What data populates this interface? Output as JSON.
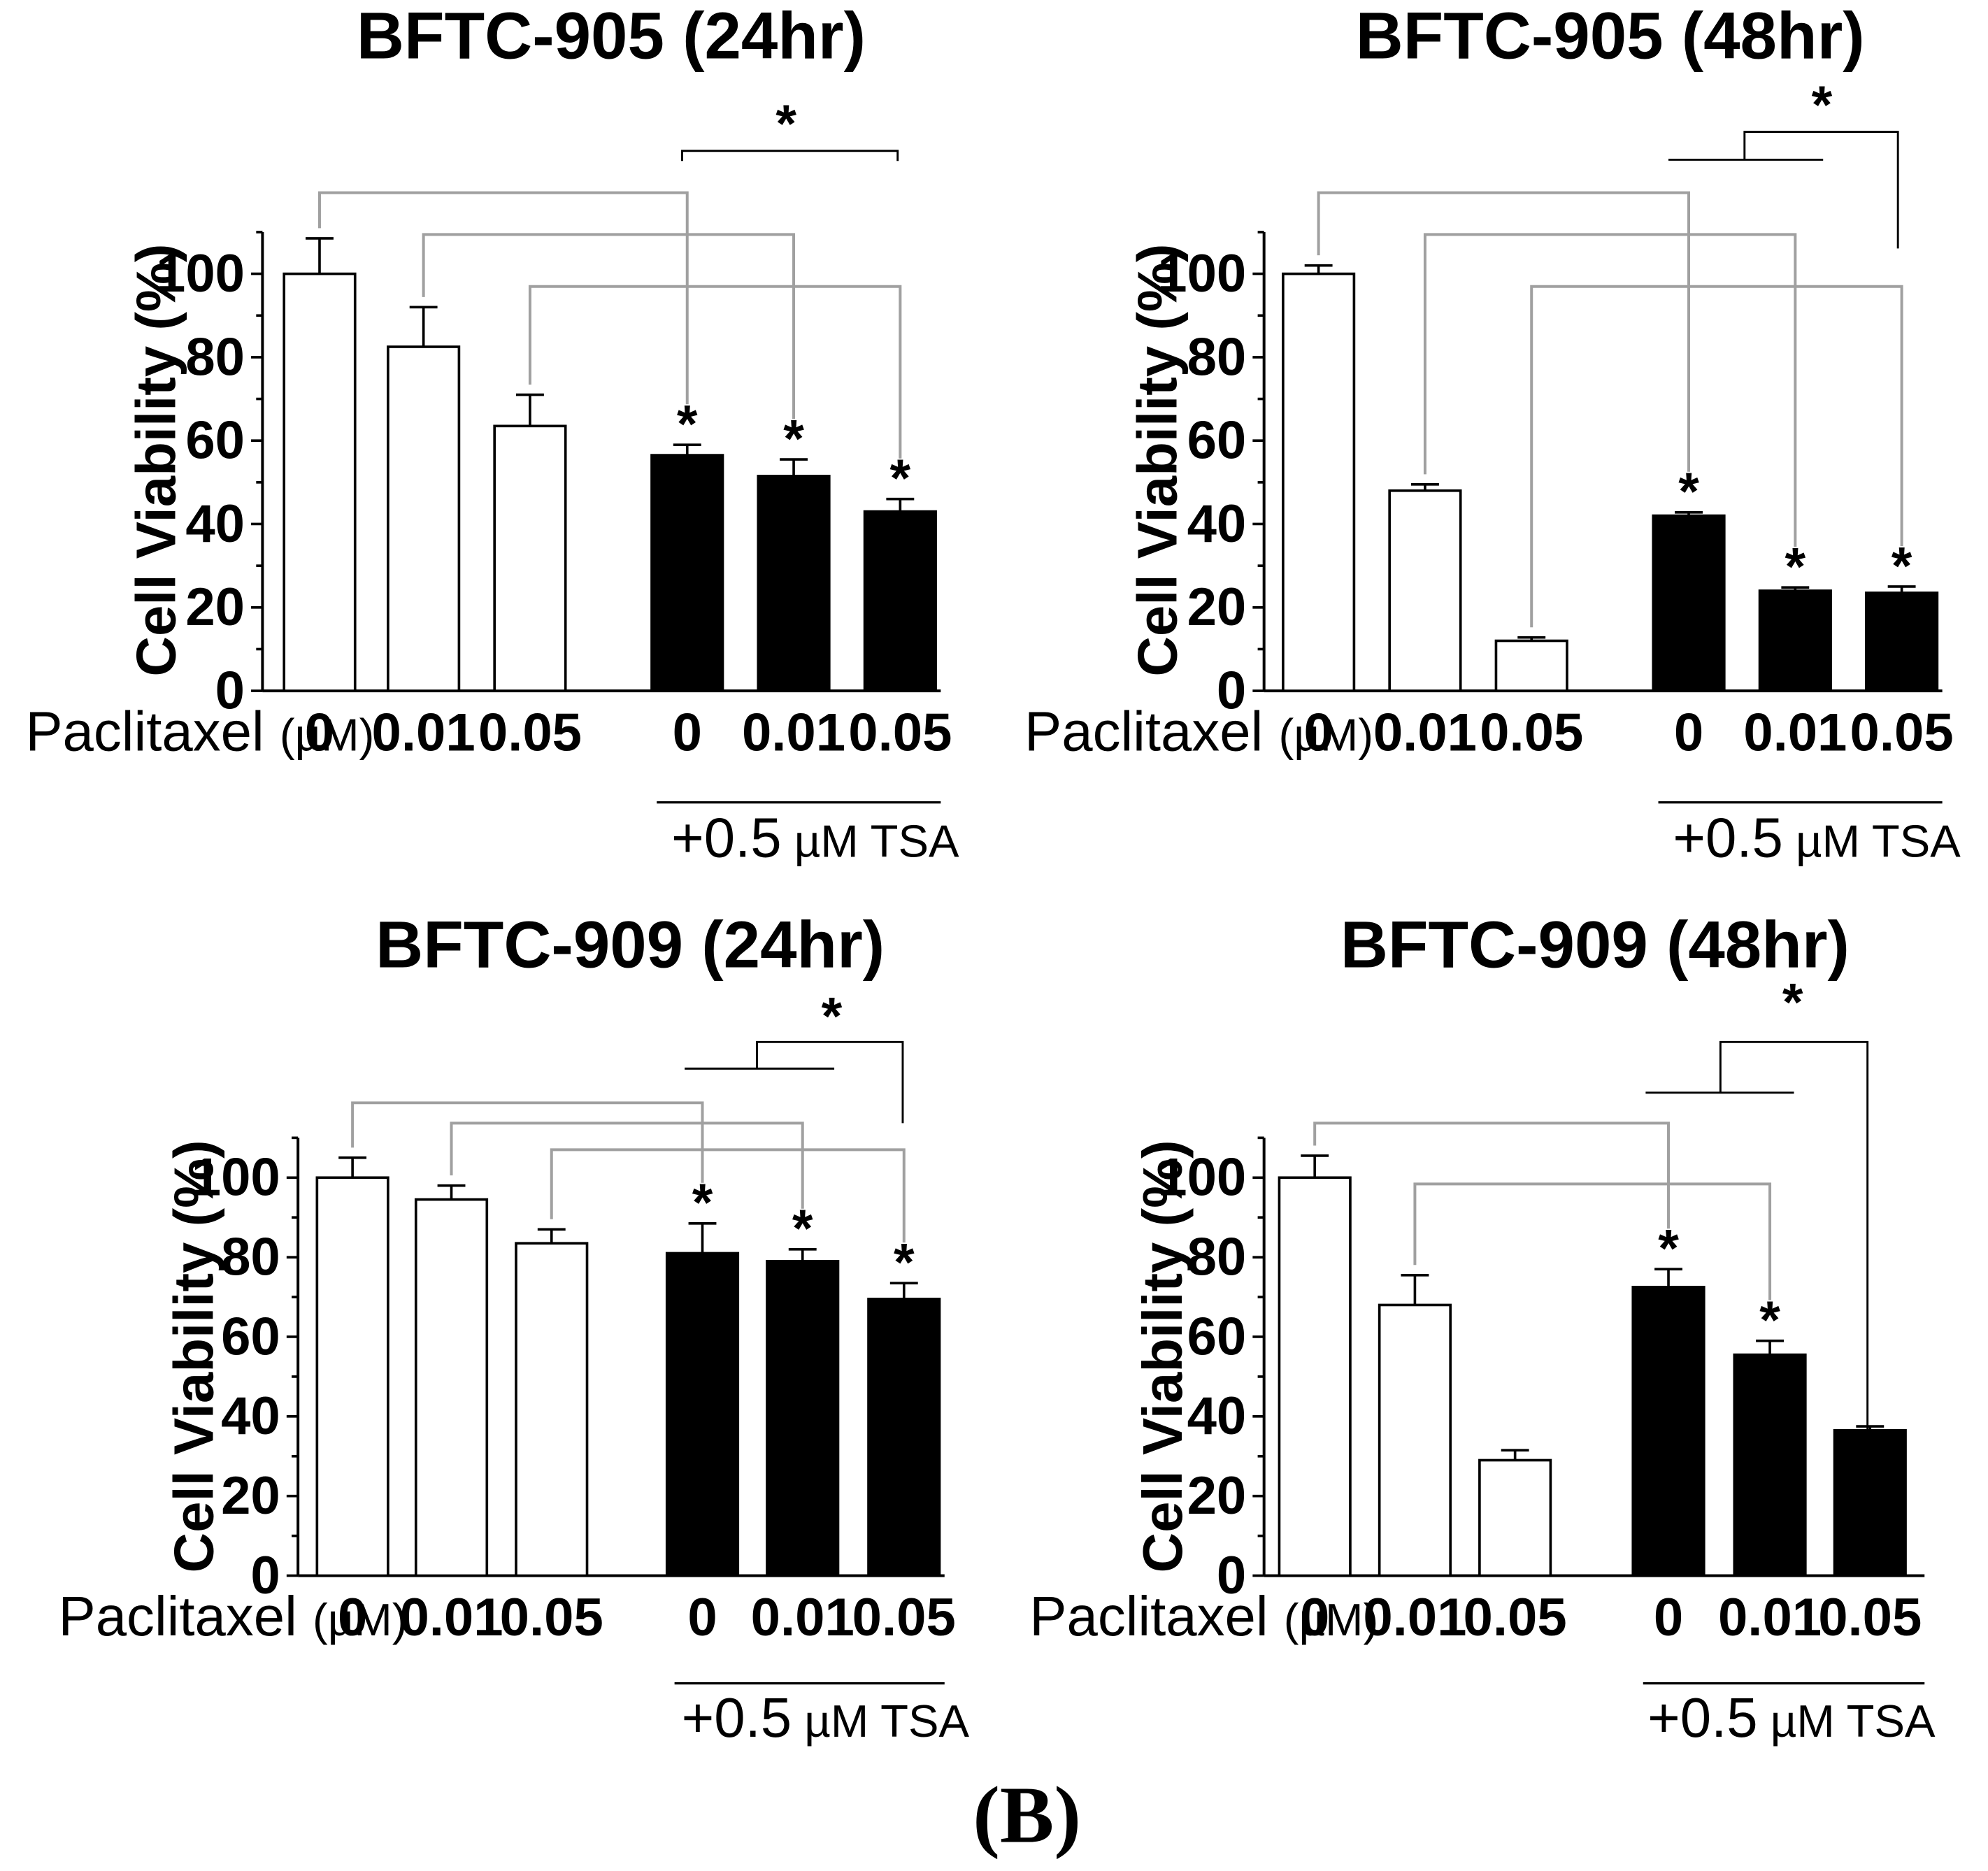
{
  "panel_label": {
    "open": "(",
    "letter": "B",
    "close": ")"
  },
  "chart_data": [
    {
      "type": "bar",
      "title": "BFTC-905 (24hr)",
      "xlabel": "",
      "ylabel": "Cell Viability (%)",
      "ylim": [
        0,
        110
      ],
      "yticks": [
        0,
        20,
        40,
        60,
        80,
        100
      ],
      "row_label": "Paclitaxel",
      "row_unit": "(µM)",
      "categories": [
        "0",
        "0.01",
        "0.05",
        "0",
        "0.01",
        "0.05"
      ],
      "values": [
        100,
        82.5,
        63.5,
        56.5,
        51.5,
        43
      ],
      "errors": [
        8.5,
        9.5,
        7.5,
        2.5,
        4.0,
        3.0
      ],
      "fill": [
        "white",
        "white",
        "white",
        "black",
        "black",
        "black"
      ],
      "bar_stars": [
        "",
        "",
        "",
        "*",
        "*",
        "*"
      ],
      "group_label": "+0.5 µM TSA",
      "comparison_star": "*"
    },
    {
      "type": "bar",
      "title": "BFTC-905 (48hr)",
      "xlabel": "",
      "ylabel": "Cell Viability (%)",
      "ylim": [
        0,
        110
      ],
      "yticks": [
        0,
        20,
        40,
        60,
        80,
        100
      ],
      "row_label": "Paclitaxel",
      "row_unit": "(µM)",
      "categories": [
        "0",
        "0.01",
        "0.05",
        "0",
        "0.01",
        "0.05"
      ],
      "values": [
        100,
        48,
        12,
        42,
        24,
        23.5
      ],
      "errors": [
        2.0,
        1.5,
        0.8,
        0.8,
        0.8,
        1.5
      ],
      "fill": [
        "white",
        "white",
        "white",
        "black",
        "black",
        "black"
      ],
      "bar_stars": [
        "",
        "",
        "",
        "*",
        "*",
        "*"
      ],
      "group_label": "+0.5 µM TSA",
      "comparison_star": "*"
    },
    {
      "type": "bar",
      "title": "BFTC-909 (24hr)",
      "xlabel": "",
      "ylabel": "Cell Viability (%)",
      "ylim": [
        0,
        110
      ],
      "yticks": [
        0,
        20,
        40,
        60,
        80,
        100
      ],
      "row_label": "Paclitaxel",
      "row_unit": "(µM)",
      "categories": [
        "0",
        "0.01",
        "0.05",
        "0",
        "0.01",
        "0.05"
      ],
      "values": [
        100,
        94.5,
        83.5,
        81,
        79,
        69.5
      ],
      "errors": [
        5.0,
        3.5,
        3.5,
        7.5,
        3.0,
        4.0
      ],
      "fill": [
        "white",
        "white",
        "white",
        "black",
        "black",
        "black"
      ],
      "bar_stars": [
        "",
        "",
        "",
        "*",
        "*",
        "*"
      ],
      "group_label": "+0.5 µM TSA",
      "comparison_star": "*"
    },
    {
      "type": "bar",
      "title": "BFTC-909 (48hr)",
      "xlabel": "",
      "ylabel": "Cell Viability (%)",
      "ylim": [
        0,
        110
      ],
      "yticks": [
        0,
        20,
        40,
        60,
        80,
        100
      ],
      "row_label": "Paclitaxel",
      "row_unit": "(µM)",
      "categories": [
        "0",
        "0.01",
        "0.05",
        "0",
        "0.01",
        "0.05"
      ],
      "values": [
        100,
        68,
        29,
        72.5,
        55.5,
        36.5
      ],
      "errors": [
        5.5,
        7.5,
        2.5,
        4.5,
        3.5,
        1.0
      ],
      "fill": [
        "white",
        "white",
        "white",
        "black",
        "black",
        "black"
      ],
      "bar_stars": [
        "",
        "",
        "",
        "*",
        "*",
        ""
      ],
      "group_label": "+0.5 µM TSA",
      "comparison_star": "*"
    }
  ]
}
